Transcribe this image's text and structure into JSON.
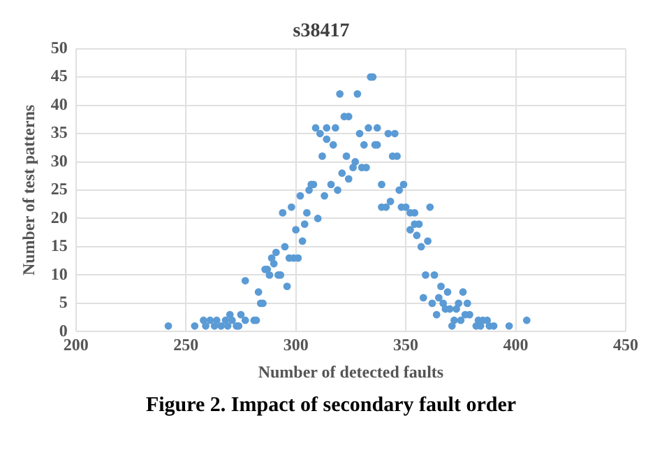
{
  "chart_data": {
    "type": "scatter",
    "title": "s38417",
    "xlabel": "Number of detected faults",
    "ylabel": "Number of test patterns",
    "annotations": [
      "Figure 2.  Impact of secondary fault order"
    ],
    "xlim": [
      200,
      450
    ],
    "xticks": [
      200,
      250,
      300,
      350,
      400,
      450
    ],
    "ylim": [
      0,
      50
    ],
    "yticks": [
      0,
      5,
      10,
      15,
      20,
      25,
      30,
      35,
      40,
      45,
      50
    ],
    "grid": true,
    "legend": false,
    "marker": "circle",
    "series": [
      {
        "color": "#5b9bd5",
        "x": [
          242,
          254,
          258,
          259,
          261,
          263,
          264,
          266,
          268,
          269,
          270,
          271,
          273,
          274,
          275,
          277,
          277,
          281,
          282,
          283,
          284,
          285,
          286,
          287,
          288,
          289,
          290,
          291,
          292,
          293,
          294,
          295,
          296,
          297,
          298,
          299,
          300,
          301,
          302,
          303,
          304,
          305,
          306,
          307,
          308,
          309,
          310,
          311,
          312,
          313,
          314,
          314,
          316,
          317,
          318,
          319,
          320,
          321,
          322,
          323,
          324,
          324,
          326,
          327,
          328,
          329,
          330,
          331,
          332,
          333,
          334,
          335,
          336,
          337,
          337,
          339,
          339,
          341,
          342,
          343,
          344,
          345,
          346,
          347,
          348,
          349,
          350,
          352,
          352,
          354,
          354,
          355,
          356,
          357,
          358,
          359,
          360,
          361,
          362,
          363,
          364,
          365,
          366,
          367,
          368,
          369,
          370,
          371,
          372,
          373,
          374,
          375,
          376,
          377,
          378,
          379,
          382,
          383,
          384,
          385,
          387,
          388,
          390,
          397,
          405
        ],
        "values": [
          1,
          1,
          2,
          1,
          2,
          1,
          2,
          1,
          2,
          1,
          3,
          2,
          1,
          1,
          3,
          2,
          9,
          2,
          2,
          7,
          5,
          5,
          11,
          11,
          10,
          13,
          12,
          14,
          10,
          10,
          21,
          15,
          8,
          13,
          22,
          13,
          18,
          13,
          24,
          16,
          19,
          21,
          25,
          26,
          26,
          36,
          20,
          35,
          31,
          24,
          36,
          34,
          26,
          33,
          36,
          25,
          42,
          28,
          38,
          31,
          38,
          27,
          29,
          30,
          42,
          35,
          29,
          33,
          29,
          36,
          45,
          45,
          33,
          33,
          36,
          26,
          22,
          22,
          35,
          23,
          31,
          35,
          31,
          25,
          22,
          26,
          22,
          21,
          18,
          21,
          19,
          17,
          19,
          15,
          6,
          10,
          16,
          22,
          5,
          10,
          3,
          6,
          8,
          5,
          4,
          7,
          4,
          1,
          2,
          4,
          5,
          2,
          7,
          3,
          5,
          3,
          1,
          2,
          1,
          2,
          2,
          1,
          1,
          1,
          2
        ]
      }
    ]
  }
}
